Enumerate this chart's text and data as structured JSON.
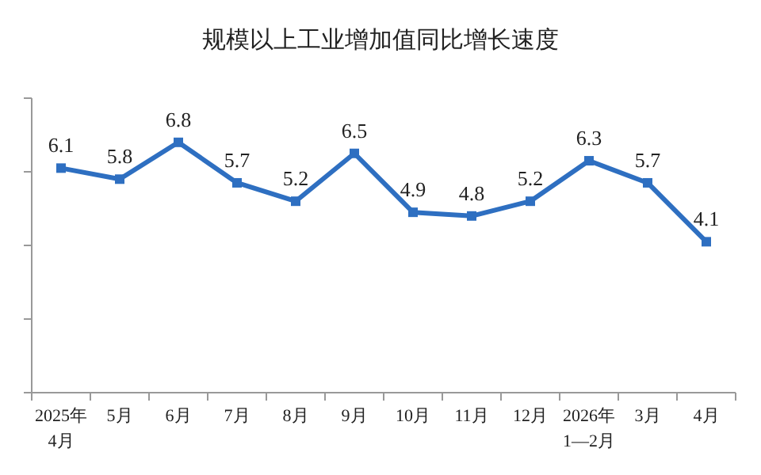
{
  "chart_data": {
    "type": "line",
    "title": "规模以上工业增加值同比增长速度",
    "categories": [
      "2025年\n4月",
      "5月",
      "6月",
      "7月",
      "8月",
      "9月",
      "10月",
      "11月",
      "12月",
      "2026年\n1—2月",
      "3月",
      "4月"
    ],
    "series": [
      {
        "color": "#2e6fc1",
        "values": [
          6.1,
          5.8,
          6.8,
          5.7,
          5.2,
          6.5,
          4.9,
          4.8,
          5.2,
          6.3,
          5.7,
          4.1
        ]
      }
    ],
    "ylim": [
      0,
      8
    ],
    "yticks": [
      {
        "value": 0,
        "label": null
      },
      {
        "value": 2,
        "label": null
      },
      {
        "value": 4,
        "label": null
      },
      {
        "value": 6,
        "label": null
      },
      {
        "value": 8,
        "label": null
      }
    ],
    "tick_labels": "x",
    "marker": "square",
    "data_labels": true,
    "grid": false
  }
}
